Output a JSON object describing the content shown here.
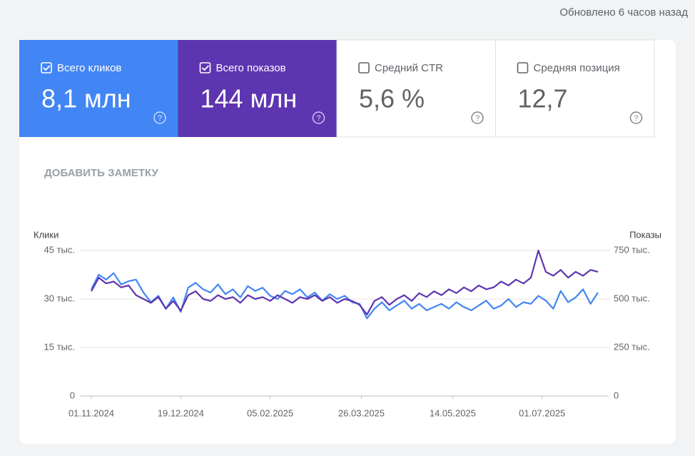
{
  "header": {
    "updated": "Обновлено 6 часов назад"
  },
  "tiles": [
    {
      "label": "Всего кликов",
      "value": "8,1 млн",
      "checked": true,
      "color": "#4285f4"
    },
    {
      "label": "Всего показов",
      "value": "144 млн",
      "checked": true,
      "color": "#5e35b1"
    },
    {
      "label": "Средний CTR",
      "value": "5,6 %",
      "checked": false
    },
    {
      "label": "Средняя позиция",
      "value": "12,7",
      "checked": false
    }
  ],
  "note_button": "ДОБАВИТЬ ЗАМЕТКУ",
  "chart_data": {
    "type": "line",
    "y_label": "Клики",
    "y2_label": "Показы",
    "x": [
      "01.11.2024",
      "05.11.2024",
      "09.11.2024",
      "13.11.2024",
      "17.11.2024",
      "21.11.2024",
      "25.11.2024",
      "29.11.2024",
      "03.12.2024",
      "07.12.2024",
      "11.12.2024",
      "15.12.2024",
      "19.12.2024",
      "23.12.2024",
      "27.12.2024",
      "31.12.2024",
      "04.01.2025",
      "08.01.2025",
      "12.01.2025",
      "16.01.2025",
      "20.01.2025",
      "24.01.2025",
      "28.01.2025",
      "01.02.2025",
      "05.02.2025",
      "09.02.2025",
      "13.02.2025",
      "17.02.2025",
      "21.02.2025",
      "25.02.2025",
      "01.03.2025",
      "05.03.2025",
      "09.03.2025",
      "13.03.2025",
      "17.03.2025",
      "21.03.2025",
      "25.03.2025",
      "29.03.2025",
      "02.04.2025",
      "06.04.2025",
      "10.04.2025",
      "14.04.2025",
      "18.04.2025",
      "22.04.2025",
      "26.04.2025",
      "30.04.2025",
      "04.05.2025",
      "08.05.2025",
      "12.05.2025",
      "16.05.2025",
      "20.05.2025",
      "24.05.2025",
      "28.05.2025",
      "01.06.2025",
      "05.06.2025",
      "09.06.2025",
      "13.06.2025",
      "17.06.2025",
      "21.06.2025",
      "25.06.2025",
      "29.06.2025",
      "03.07.2025",
      "07.07.2025",
      "11.07.2025",
      "15.07.2025",
      "19.07.2025",
      "23.07.2025",
      "27.07.2025",
      "31.07.2025"
    ],
    "xlim": [
      "01.11.2024",
      "31.07.2025"
    ],
    "xticks": [
      "01.11.2024",
      "19.12.2024",
      "05.02.2025",
      "26.03.2025",
      "14.05.2025",
      "01.07.2025"
    ],
    "ylim": [
      0,
      45000
    ],
    "yticks": [
      0,
      {
        "value": 15000,
        "label": "15 тыс."
      },
      {
        "value": 30000,
        "label": "30 тыс."
      },
      {
        "value": 45000,
        "label": "45 тыс."
      }
    ],
    "y2lim": [
      0,
      750000
    ],
    "y2ticks": [
      0,
      {
        "value": 250000,
        "label": "250 тыс."
      },
      {
        "value": 500000,
        "label": "500 тыс."
      },
      {
        "value": 750000,
        "label": "750 тыс."
      }
    ],
    "grid": true,
    "series": [
      {
        "name": "Всего кликов",
        "color": "#4285f4",
        "values": [
          33000,
          37500,
          36000,
          38000,
          34500,
          35500,
          36000,
          32000,
          29000,
          31000,
          27000,
          30500,
          26000,
          33500,
          35000,
          33000,
          32000,
          34500,
          31500,
          33000,
          30500,
          34000,
          32500,
          33500,
          31000,
          30000,
          32500,
          31500,
          33000,
          30500,
          32000,
          29500,
          31500,
          30000,
          31000,
          29000,
          28500,
          24000,
          27000,
          29000,
          26500,
          28000,
          29500,
          27000,
          28500,
          26500,
          27500,
          28500,
          27000,
          29000,
          27500,
          26500,
          28000,
          29500,
          27000,
          28000,
          30000,
          27500,
          29000,
          28500,
          31000,
          29500,
          27000,
          32500,
          29000,
          30500,
          33000,
          28500,
          32000
        ]
      },
      {
        "name": "Всего показов",
        "color": "#5e35b1",
        "axis": "y2",
        "values": [
          540000,
          610000,
          580000,
          590000,
          560000,
          570000,
          520000,
          500000,
          480000,
          510000,
          450000,
          490000,
          440000,
          520000,
          540000,
          500000,
          490000,
          520000,
          500000,
          510000,
          480000,
          520000,
          500000,
          510000,
          490000,
          520000,
          500000,
          480000,
          510000,
          500000,
          520000,
          490000,
          510000,
          480000,
          500000,
          490000,
          470000,
          420000,
          490000,
          510000,
          470000,
          500000,
          520000,
          490000,
          530000,
          510000,
          540000,
          520000,
          550000,
          530000,
          560000,
          540000,
          570000,
          550000,
          560000,
          590000,
          570000,
          600000,
          580000,
          610000,
          750000,
          640000,
          620000,
          650000,
          610000,
          640000,
          620000,
          650000,
          640000
        ]
      }
    ]
  }
}
